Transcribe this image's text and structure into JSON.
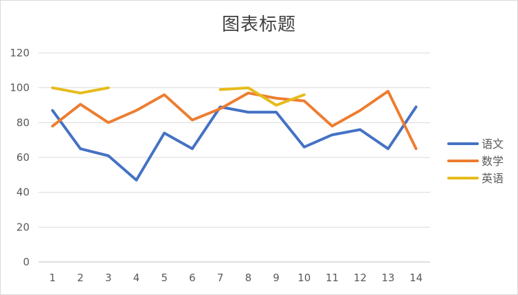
{
  "chart_data": {
    "type": "line",
    "title": "图表标题",
    "x": [
      "1",
      "2",
      "3",
      "4",
      "5",
      "6",
      "7",
      "8",
      "9",
      "10",
      "11",
      "12",
      "13",
      "14"
    ],
    "ylim": [
      0,
      120
    ],
    "yticks": [
      "0",
      "20",
      "40",
      "60",
      "80",
      "100",
      "120"
    ],
    "grid": true,
    "legend_position": "right",
    "series": [
      {
        "name": "语文",
        "color": "#4472C4",
        "values": [
          87,
          65,
          61,
          47,
          74,
          65,
          89,
          86,
          86,
          66,
          73,
          76,
          65,
          89
        ]
      },
      {
        "name": "数学",
        "color": "#ED7D31",
        "values": [
          78,
          90.5,
          80,
          87,
          96,
          81.5,
          88,
          97,
          94,
          92.5,
          78,
          87,
          98,
          65
        ]
      },
      {
        "name": "英语",
        "color": "#E6BB1C",
        "values": [
          100,
          97,
          100,
          null,
          null,
          null,
          99,
          100,
          90,
          96,
          null,
          null,
          null,
          null
        ]
      }
    ]
  }
}
